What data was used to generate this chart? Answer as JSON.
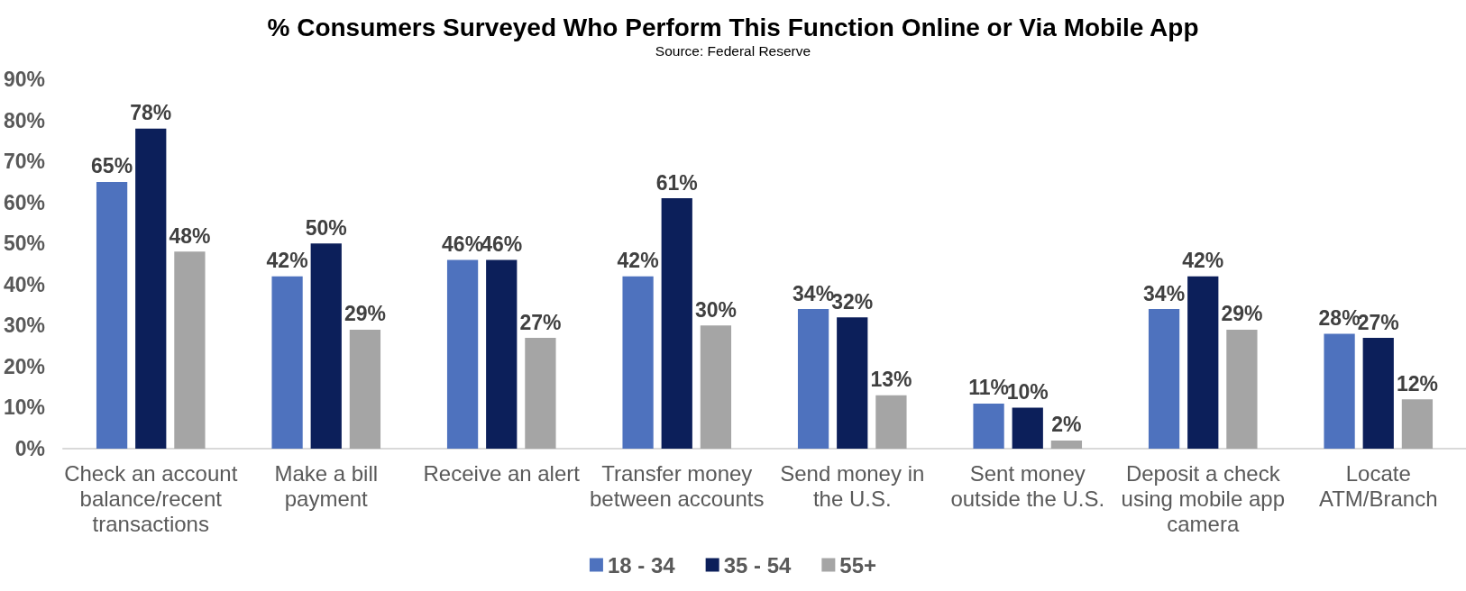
{
  "chart_data": {
    "type": "bar",
    "title": "% Consumers Surveyed Who Perform This Function Online or Via Mobile App",
    "subtitle": "Source: Federal Reserve",
    "categories": [
      "Check an account balance/recent transactions",
      "Make a bill payment",
      "Receive an alert",
      "Transfer money between accounts",
      "Send money in the U.S.",
      "Sent money outside the U.S.",
      "Deposit a check using mobile app camera",
      "Locate ATM/Branch"
    ],
    "series": [
      {
        "name": "18 - 34",
        "color": "#4e72be",
        "values": [
          65,
          42,
          46,
          42,
          34,
          11,
          34,
          28
        ],
        "value_labels": [
          "65%",
          "42%",
          "46%",
          "42%",
          "34%",
          "11%",
          "34%",
          "28%"
        ]
      },
      {
        "name": "35 - 54",
        "color": "#0c1f5a",
        "values": [
          78,
          50,
          46,
          61,
          32,
          10,
          42,
          27
        ],
        "value_labels": [
          "78%",
          "50%",
          "46%",
          "61%",
          "32%",
          "10%",
          "42%",
          "27%"
        ]
      },
      {
        "name": "55+",
        "color": "#a5a5a5",
        "values": [
          48,
          29,
          27,
          30,
          13,
          2,
          29,
          12
        ],
        "value_labels": [
          "48%",
          "29%",
          "27%",
          "30%",
          "13%",
          "2%",
          "29%",
          "12%"
        ]
      }
    ],
    "ylim": [
      0,
      90
    ],
    "yticks": [
      {
        "value": 0,
        "label": "0%"
      },
      {
        "value": 10,
        "label": "10%"
      },
      {
        "value": 20,
        "label": "20%"
      },
      {
        "value": 30,
        "label": "30%"
      },
      {
        "value": 40,
        "label": "40%"
      },
      {
        "value": 50,
        "label": "50%"
      },
      {
        "value": 60,
        "label": "60%"
      },
      {
        "value": 70,
        "label": "70%"
      },
      {
        "value": 80,
        "label": "80%"
      },
      {
        "value": 90,
        "label": "90%"
      }
    ],
    "legend": "bottom"
  }
}
